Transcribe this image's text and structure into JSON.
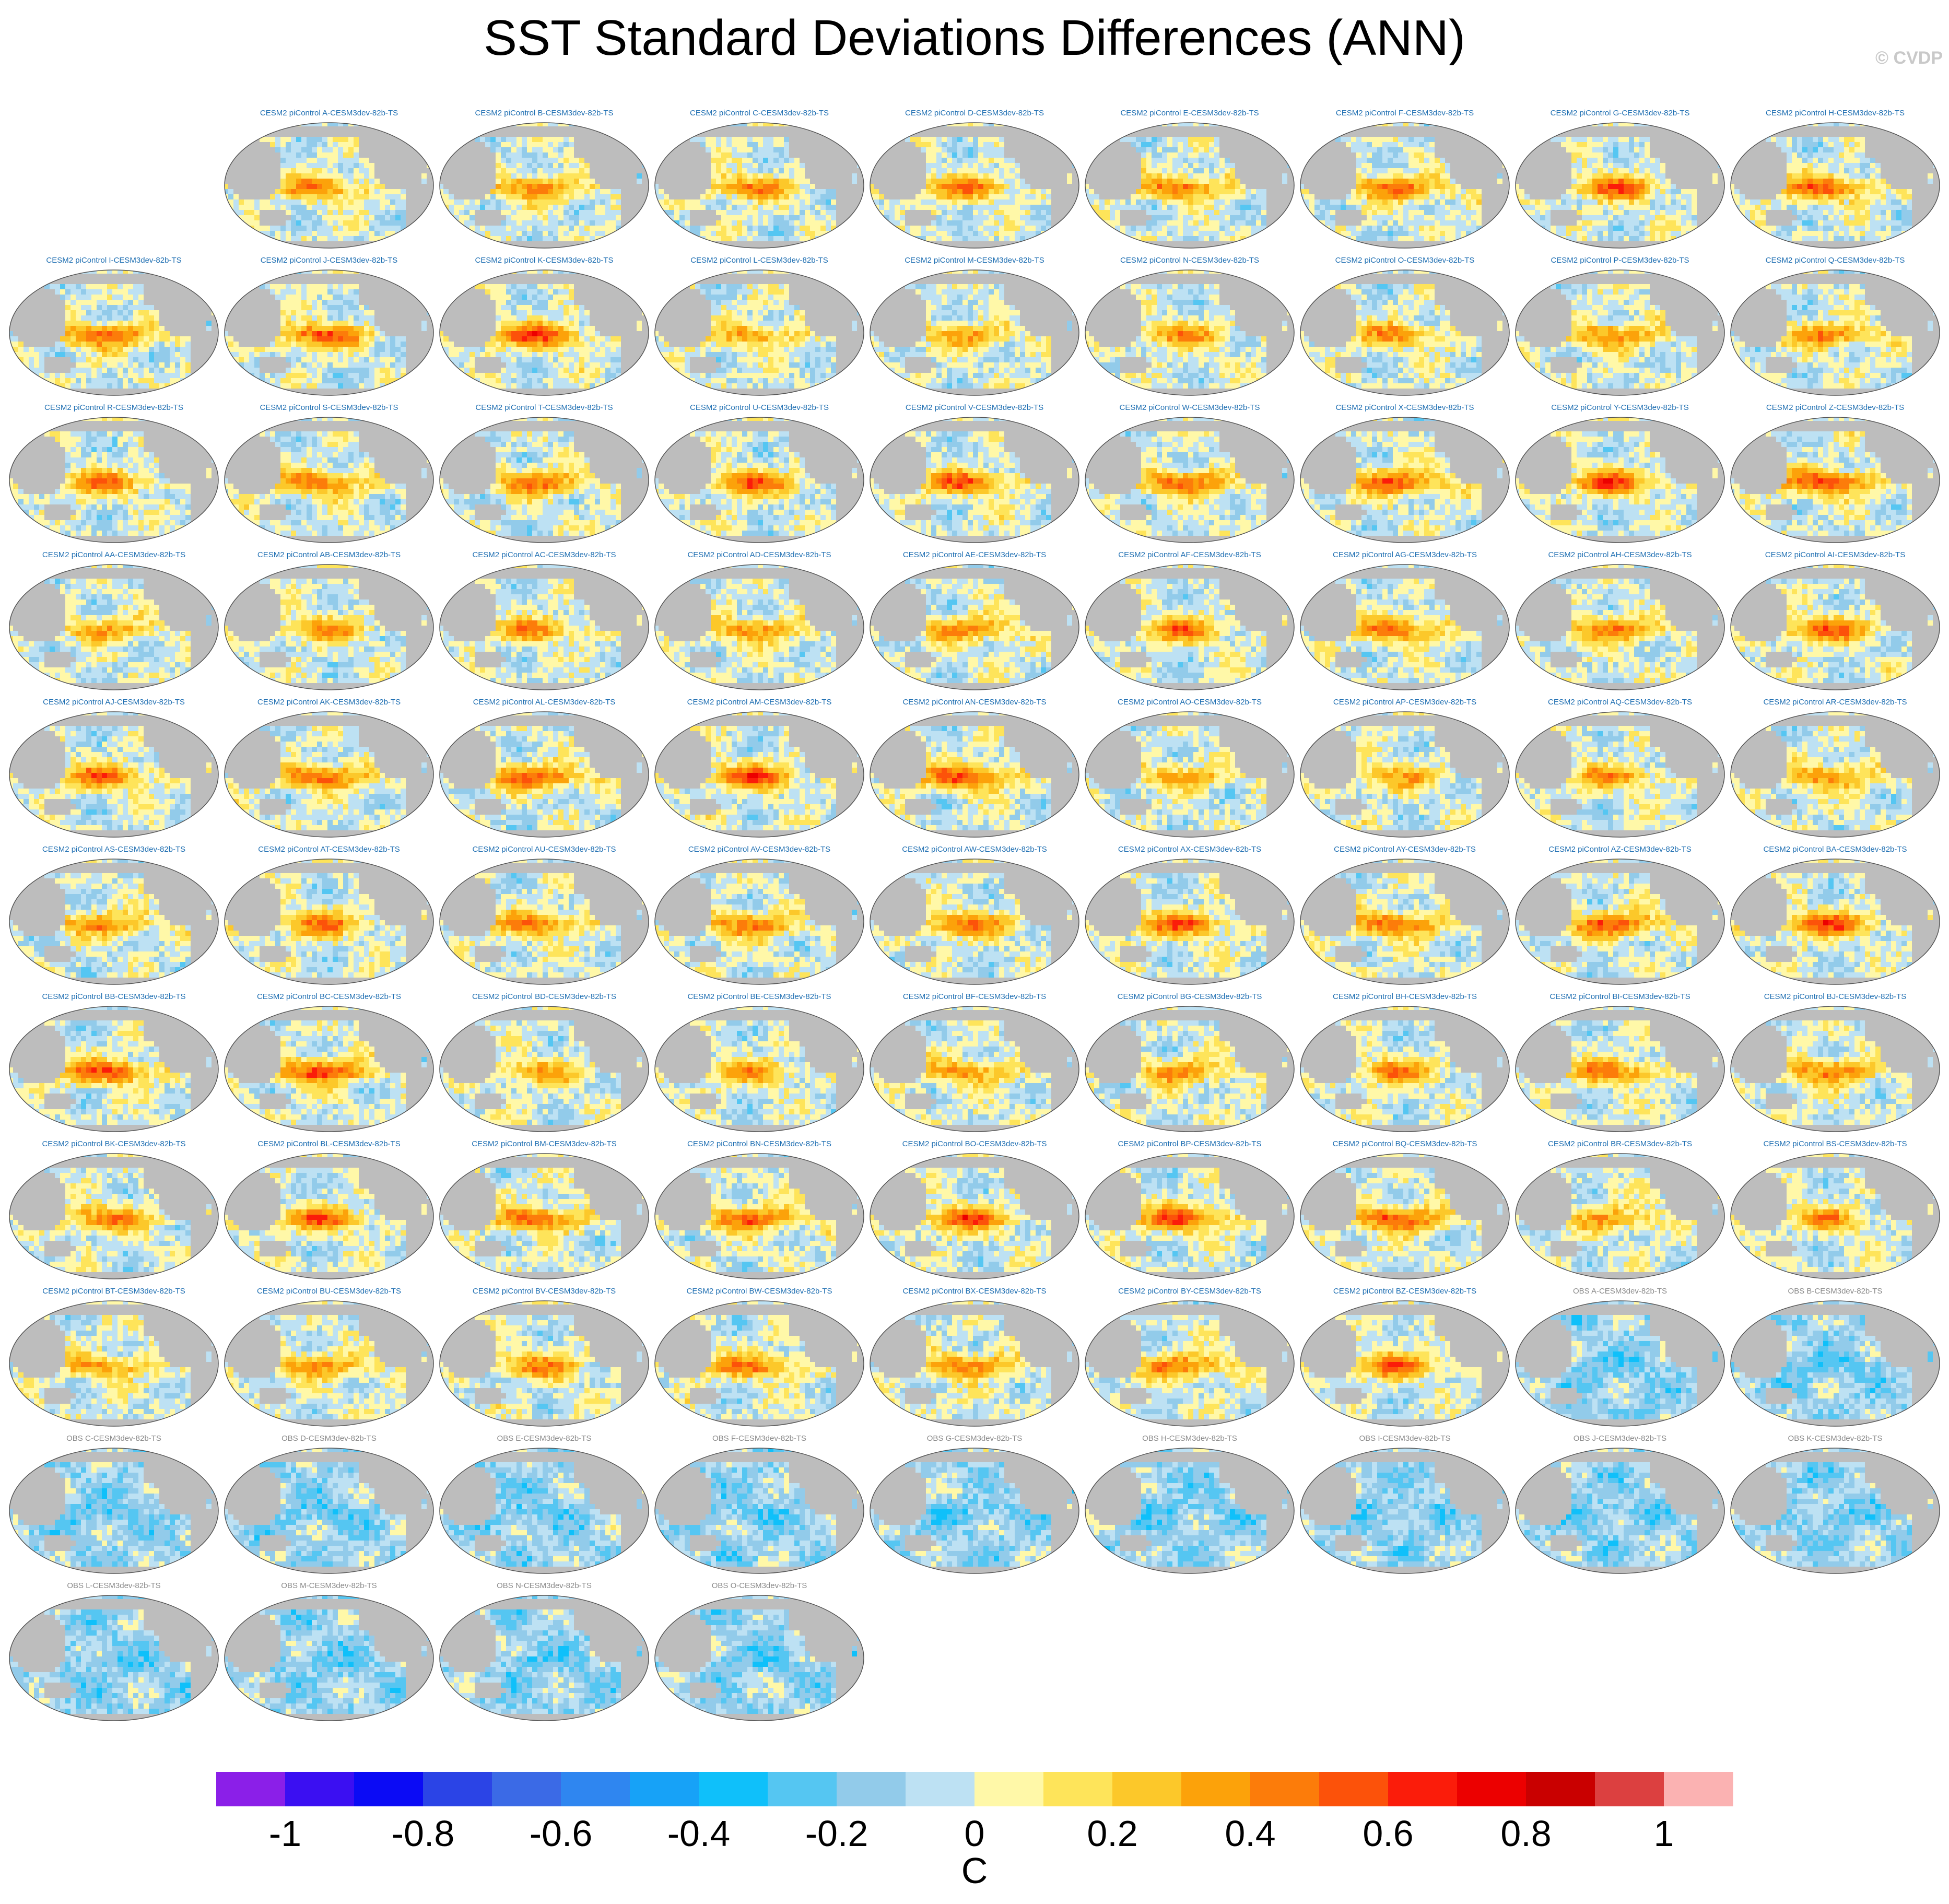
{
  "title": "SST Standard Deviations Differences (ANN)",
  "credit": "© CVDP",
  "chart_data": {
    "type": "heatmap",
    "title": "SST Standard Deviations Differences (ANN)",
    "units": "C",
    "panel_titles": [
      "CESM2 piControl A-CESM3dev-82b-TS",
      "CESM2 piControl B-CESM3dev-82b-TS",
      "CESM2 piControl C-CESM3dev-82b-TS",
      "CESM2 piControl D-CESM3dev-82b-TS",
      "CESM2 piControl E-CESM3dev-82b-TS",
      "CESM2 piControl F-CESM3dev-82b-TS",
      "CESM2 piControl G-CESM3dev-82b-TS",
      "CESM2 piControl H-CESM3dev-82b-TS",
      "CESM2 piControl I-CESM3dev-82b-TS",
      "CESM2 piControl J-CESM3dev-82b-TS",
      "CESM2 piControl K-CESM3dev-82b-TS",
      "CESM2 piControl L-CESM3dev-82b-TS",
      "CESM2 piControl M-CESM3dev-82b-TS",
      "CESM2 piControl N-CESM3dev-82b-TS",
      "CESM2 piControl O-CESM3dev-82b-TS",
      "CESM2 piControl P-CESM3dev-82b-TS",
      "CESM2 piControl Q-CESM3dev-82b-TS",
      "CESM2 piControl R-CESM3dev-82b-TS",
      "CESM2 piControl S-CESM3dev-82b-TS",
      "CESM2 piControl T-CESM3dev-82b-TS",
      "CESM2 piControl U-CESM3dev-82b-TS",
      "CESM2 piControl V-CESM3dev-82b-TS",
      "CESM2 piControl W-CESM3dev-82b-TS",
      "CESM2 piControl X-CESM3dev-82b-TS",
      "CESM2 piControl Y-CESM3dev-82b-TS",
      "CESM2 piControl Z-CESM3dev-82b-TS",
      "CESM2 piControl AA-CESM3dev-82b-TS",
      "CESM2 piControl AB-CESM3dev-82b-TS",
      "CESM2 piControl AC-CESM3dev-82b-TS",
      "CESM2 piControl AD-CESM3dev-82b-TS",
      "CESM2 piControl AE-CESM3dev-82b-TS",
      "CESM2 piControl AF-CESM3dev-82b-TS",
      "CESM2 piControl AG-CESM3dev-82b-TS",
      "CESM2 piControl AH-CESM3dev-82b-TS",
      "CESM2 piControl AI-CESM3dev-82b-TS",
      "CESM2 piControl AJ-CESM3dev-82b-TS",
      "CESM2 piControl AK-CESM3dev-82b-TS",
      "CESM2 piControl AL-CESM3dev-82b-TS",
      "CESM2 piControl AM-CESM3dev-82b-TS",
      "CESM2 piControl AN-CESM3dev-82b-TS",
      "CESM2 piControl AO-CESM3dev-82b-TS",
      "CESM2 piControl AP-CESM3dev-82b-TS",
      "CESM2 piControl AQ-CESM3dev-82b-TS",
      "CESM2 piControl AR-CESM3dev-82b-TS",
      "CESM2 piControl AS-CESM3dev-82b-TS",
      "CESM2 piControl AT-CESM3dev-82b-TS",
      "CESM2 piControl AU-CESM3dev-82b-TS",
      "CESM2 piControl AV-CESM3dev-82b-TS",
      "CESM2 piControl AW-CESM3dev-82b-TS",
      "CESM2 piControl AX-CESM3dev-82b-TS",
      "CESM2 piControl AY-CESM3dev-82b-TS",
      "CESM2 piControl AZ-CESM3dev-82b-TS",
      "CESM2 piControl BA-CESM3dev-82b-TS",
      "CESM2 piControl BB-CESM3dev-82b-TS",
      "CESM2 piControl BC-CESM3dev-82b-TS",
      "CESM2 piControl BD-CESM3dev-82b-TS",
      "CESM2 piControl BE-CESM3dev-82b-TS",
      "CESM2 piControl BF-CESM3dev-82b-TS",
      "CESM2 piControl BG-CESM3dev-82b-TS",
      "CESM2 piControl BH-CESM3dev-82b-TS",
      "CESM2 piControl BI-CESM3dev-82b-TS",
      "CESM2 piControl BJ-CESM3dev-82b-TS",
      "CESM2 piControl BK-CESM3dev-82b-TS",
      "CESM2 piControl BL-CESM3dev-82b-TS",
      "CESM2 piControl BM-CESM3dev-82b-TS",
      "CESM2 piControl BN-CESM3dev-82b-TS",
      "CESM2 piControl BO-CESM3dev-82b-TS",
      "CESM2 piControl BP-CESM3dev-82b-TS",
      "CESM2 piControl BQ-CESM3dev-82b-TS",
      "CESM2 piControl BR-CESM3dev-82b-TS",
      "CESM2 piControl BS-CESM3dev-82b-TS",
      "CESM2 piControl BT-CESM3dev-82b-TS",
      "CESM2 piControl BU-CESM3dev-82b-TS",
      "CESM2 piControl BV-CESM3dev-82b-TS",
      "CESM2 piControl BW-CESM3dev-82b-TS",
      "CESM2 piControl BX-CESM3dev-82b-TS",
      "CESM2 piControl BY-CESM3dev-82b-TS",
      "CESM2 piControl BZ-CESM3dev-82b-TS",
      "OBS A-CESM3dev-82b-TS",
      "OBS B-CESM3dev-82b-TS",
      "OBS C-CESM3dev-82b-TS",
      "OBS D-CESM3dev-82b-TS",
      "OBS E-CESM3dev-82b-TS",
      "OBS F-CESM3dev-82b-TS",
      "OBS G-CESM3dev-82b-TS",
      "OBS H-CESM3dev-82b-TS",
      "OBS I-CESM3dev-82b-TS",
      "OBS J-CESM3dev-82b-TS",
      "OBS K-CESM3dev-82b-TS",
      "OBS L-CESM3dev-82b-TS",
      "OBS M-CESM3dev-82b-TS",
      "OBS N-CESM3dev-82b-TS",
      "OBS O-CESM3dev-82b-TS"
    ],
    "colorbar": {
      "ticks": [
        "-1",
        "-0.8",
        "-0.6",
        "-0.4",
        "-0.2",
        "0",
        "0.2",
        "0.4",
        "0.6",
        "0.8",
        "1"
      ],
      "label": "C",
      "range": [
        -1.1,
        1.1
      ],
      "levels": [
        -1.0,
        -0.9,
        -0.8,
        -0.7,
        -0.6,
        -0.5,
        -0.4,
        -0.3,
        -0.2,
        -0.1,
        0,
        0.1,
        0.2,
        0.3,
        0.4,
        0.5,
        0.6,
        0.7,
        0.8,
        0.9,
        1.0
      ],
      "colors": [
        "#8b1fe8",
        "#3b0ff2",
        "#0b0bf5",
        "#2b44e6",
        "#3b6ae6",
        "#2f86f0",
        "#17a2f7",
        "#0fc0fa",
        "#55c6f2",
        "#92cbea",
        "#bde1f3",
        "#fff8a8",
        "#fee45a",
        "#fcc82a",
        "#fca20a",
        "#fc7c0a",
        "#fc520a",
        "#fb1c0a",
        "#ec0000",
        "#c90000",
        "#dc4040",
        "#fbb2b2"
      ]
    },
    "land_color": "#bdbdbd"
  }
}
